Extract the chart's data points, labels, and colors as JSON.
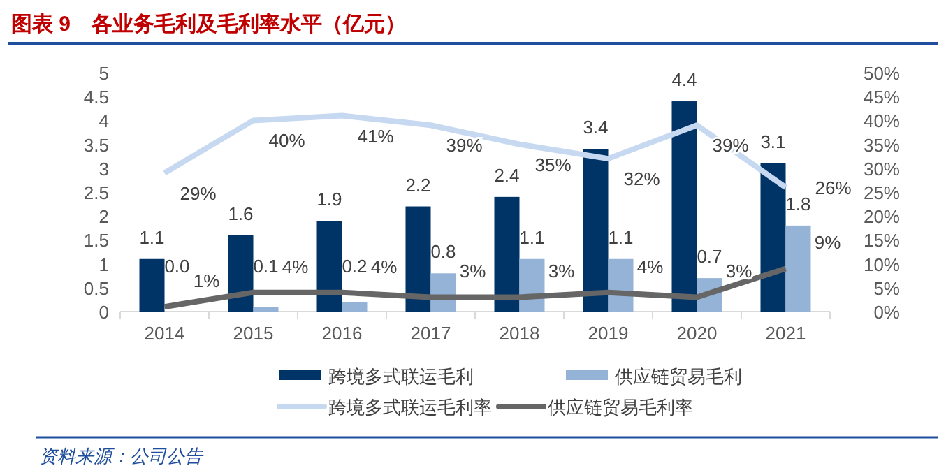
{
  "chart_data": {
    "type": "bar",
    "title": "图表 9　各业务毛利及毛利率水平（亿元）",
    "categories": [
      "2014",
      "2015",
      "2016",
      "2017",
      "2018",
      "2019",
      "2020",
      "2021"
    ],
    "series": [
      {
        "name": "跨境多式联运毛利",
        "color": "#003366",
        "values": [
          1.1,
          1.6,
          1.9,
          2.2,
          2.4,
          3.4,
          4.4,
          3.1
        ],
        "value_labels": [
          "1.1",
          "1.6",
          "1.9",
          "2.2",
          "2.4",
          "3.4",
          "4.4",
          "3.1"
        ]
      },
      {
        "name": "供应链贸易毛利",
        "color": "#95b3d7",
        "values": [
          0.0,
          0.1,
          0.2,
          0.8,
          1.1,
          1.1,
          0.7,
          1.8
        ],
        "value_labels": [
          "0.0",
          "0.1",
          "0.2",
          "0.8",
          "1.1",
          "1.1",
          "0.7",
          "1.8"
        ]
      },
      {
        "name": "跨境多式联运毛利率",
        "type": "line",
        "axis": "y2",
        "color": "#c6d9f1",
        "values": [
          29,
          40,
          41,
          39,
          35,
          32,
          39,
          26
        ],
        "value_labels": [
          "29%",
          "40%",
          "41%",
          "39%",
          "35%",
          "32%",
          "39%",
          "26%"
        ]
      },
      {
        "name": "供应链贸易毛利率",
        "type": "line",
        "axis": "y2",
        "color": "#666666",
        "values": [
          1,
          4,
          4,
          3,
          3,
          4,
          3,
          9
        ],
        "value_labels": [
          "1%",
          "4%",
          "4%",
          "3%",
          "3%",
          "4%",
          "3%",
          "9%"
        ]
      }
    ],
    "data_labels": true,
    "ylim": [
      0,
      5
    ],
    "yticks": [
      0,
      0.5,
      1,
      1.5,
      2,
      2.5,
      3,
      3.5,
      4,
      4.5,
      5
    ],
    "y2lim": [
      0,
      50
    ],
    "y2ticks": [
      {
        "value": 0,
        "label": "0%"
      },
      {
        "value": 5,
        "label": "5%"
      },
      {
        "value": 10,
        "label": "10%"
      },
      {
        "value": 15,
        "label": "15%"
      },
      {
        "value": 20,
        "label": "20%"
      },
      {
        "value": 25,
        "label": "25%"
      },
      {
        "value": 30,
        "label": "30%"
      },
      {
        "value": 35,
        "label": "35%"
      },
      {
        "value": 40,
        "label": "40%"
      },
      {
        "value": 45,
        "label": "45%"
      },
      {
        "value": 50,
        "label": "50%"
      }
    ],
    "grid": false,
    "legend": "bottom",
    "annotations": [
      "资料来源：公司公告"
    ]
  }
}
